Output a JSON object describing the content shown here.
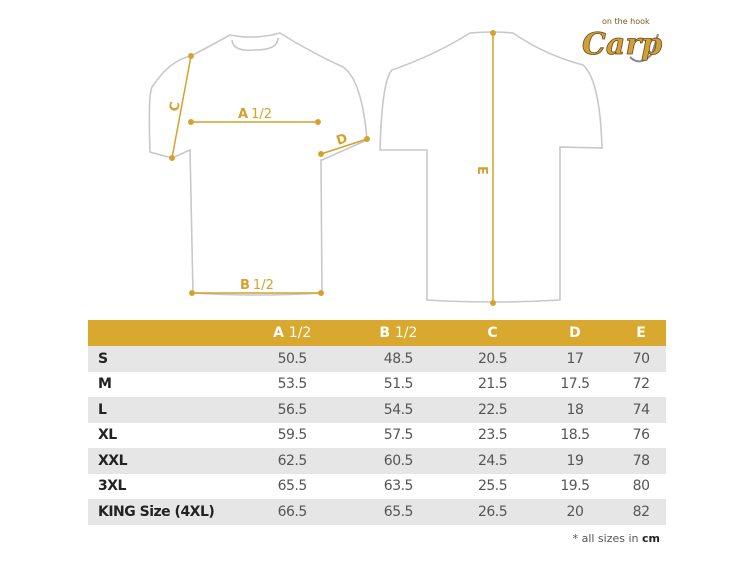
{
  "logo": {
    "tagline": "on the hook",
    "brand": "Carp"
  },
  "diagram": {
    "labels": {
      "a": "A",
      "b": "B",
      "half": "1/2",
      "c": "C",
      "d": "D",
      "e": "E"
    },
    "colors": {
      "outline": "#c8c8cc",
      "measure": "#d4a22c"
    }
  },
  "table": {
    "headers": [
      {
        "letter": "A",
        "suffix": "1/2"
      },
      {
        "letter": "B",
        "suffix": "1/2"
      },
      {
        "letter": "C",
        "suffix": ""
      },
      {
        "letter": "D",
        "suffix": ""
      },
      {
        "letter": "E",
        "suffix": ""
      }
    ],
    "rows": [
      {
        "size": "S",
        "values": [
          "50.5",
          "48.5",
          "20.5",
          "17",
          "70"
        ]
      },
      {
        "size": "M",
        "values": [
          "53.5",
          "51.5",
          "21.5",
          "17.5",
          "72"
        ]
      },
      {
        "size": "L",
        "values": [
          "56.5",
          "54.5",
          "22.5",
          "18",
          "74"
        ]
      },
      {
        "size": "XL",
        "values": [
          "59.5",
          "57.5",
          "23.5",
          "18.5",
          "76"
        ]
      },
      {
        "size": "XXL",
        "values": [
          "62.5",
          "60.5",
          "24.5",
          "19",
          "78"
        ]
      },
      {
        "size": "3XL",
        "values": [
          "65.5",
          "63.5",
          "25.5",
          "19.5",
          "80"
        ]
      },
      {
        "size": "KING Size (4XL)",
        "values": [
          "66.5",
          "65.5",
          "26.5",
          "20",
          "82"
        ]
      }
    ],
    "header_color": "#d9a82f",
    "stripe_color": "#e6e6e6"
  },
  "note": {
    "prefix": "* all sizes in",
    "unit": "cm"
  }
}
